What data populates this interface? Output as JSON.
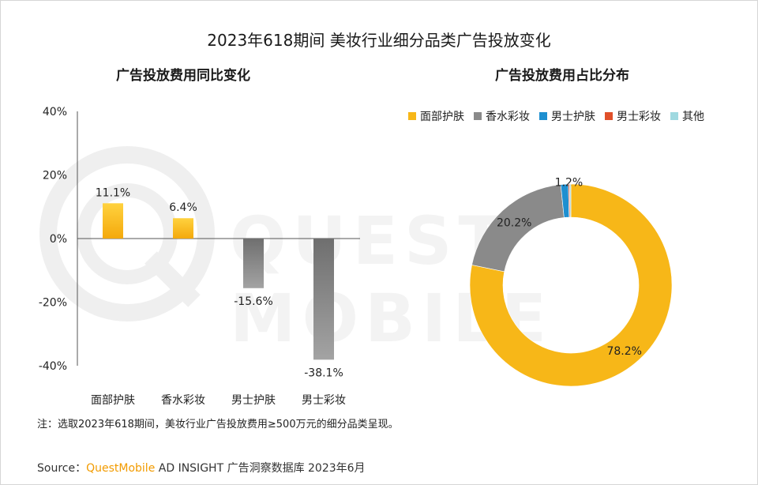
{
  "title": "2023年618期间 美妆行业细分品类广告投放变化",
  "watermark": "QUEST MOBILE",
  "colors": {
    "yellow": "#f7b718",
    "gray": "#8a8a8a",
    "blue": "#1e8fd0",
    "red": "#e0502a",
    "teal": "#9fd9e0"
  },
  "chart_data": [
    {
      "type": "bar",
      "title": "广告投放费用同比变化",
      "categories": [
        "面部护肤",
        "香水彩妆",
        "男士护肤",
        "男士彩妆"
      ],
      "values": [
        11.1,
        6.4,
        -15.6,
        -38.1
      ],
      "data_labels": [
        "11.1%",
        "6.4%",
        "-15.6%",
        "-38.1%"
      ],
      "ylim": [
        -40,
        40
      ],
      "y_ticks": [
        "40%",
        "20%",
        "0%",
        "-20%",
        "-40%"
      ],
      "y_tick_values": [
        40,
        20,
        0,
        -20,
        -40
      ],
      "grid": false,
      "bar_colors": [
        "#f7b718",
        "#f7b718",
        "#8a8a8a",
        "#8a8a8a"
      ]
    },
    {
      "type": "pie",
      "subtype": "donut",
      "title": "广告投放费用占比分布",
      "labels": [
        "面部护肤",
        "香水彩妆",
        "男士护肤",
        "男士彩妆",
        "其他"
      ],
      "values": [
        78.2,
        20.2,
        1.2,
        0.2,
        0.2
      ],
      "data_labels": [
        "78.2%",
        "20.2%",
        "1.2%",
        "",
        ""
      ],
      "colors": [
        "#f7b718",
        "#8a8a8a",
        "#1e8fd0",
        "#e0502a",
        "#9fd9e0"
      ],
      "legend_position": "top"
    }
  ],
  "note": "注：选取2023年618期间，美妆行业广告投放费用≥500万元的细分品类呈现。",
  "source": {
    "prefix": "Source：",
    "brand": "QuestMobile",
    "text": " AD INSIGHT 广告洞察数据库 2023年6月"
  }
}
